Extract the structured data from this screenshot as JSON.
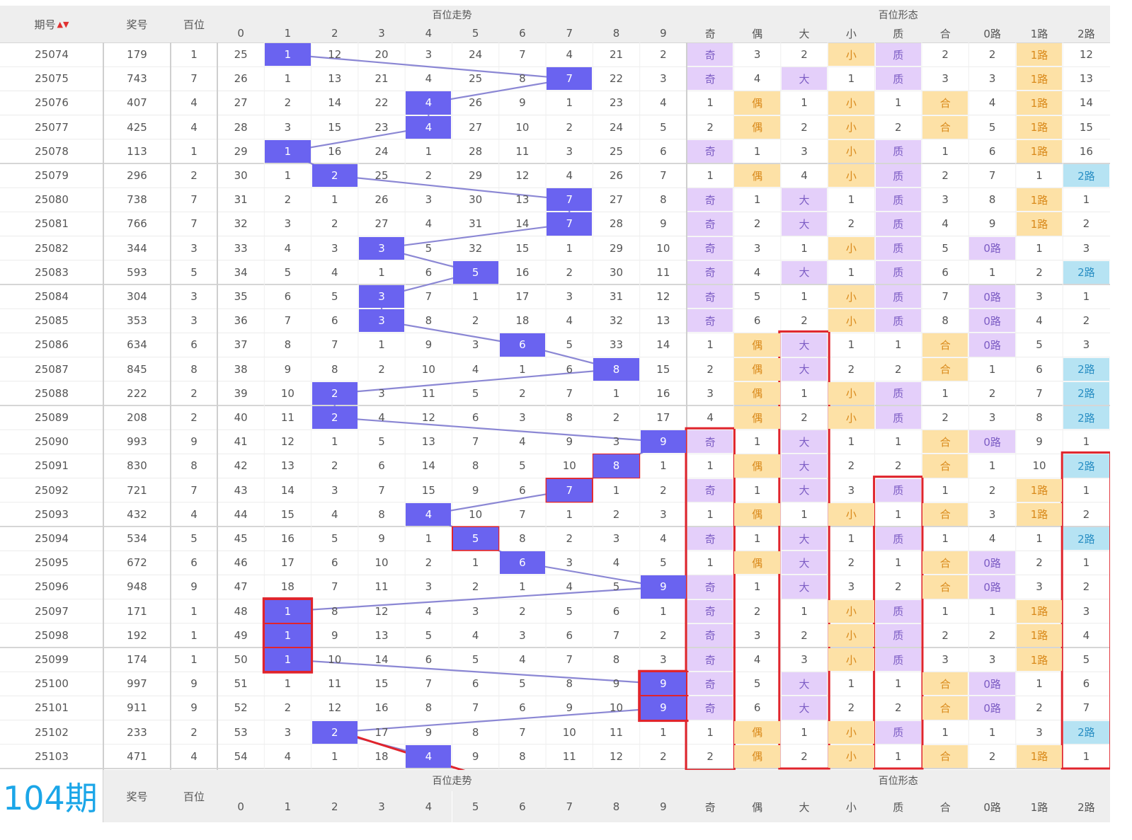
{
  "header": {
    "issue_label": "期号",
    "award_label": "奖号",
    "hundreds_label": "百位",
    "trend_title": "百位走势",
    "form_title": "百位形态",
    "sort_mark": "▲▼",
    "next_issue": "104期"
  },
  "digit_headers": [
    "0",
    "1",
    "2",
    "3",
    "4",
    "5",
    "6",
    "7",
    "8",
    "9"
  ],
  "form_headers": [
    "奇",
    "偶",
    "大",
    "小",
    "质",
    "合",
    "0路",
    "1路",
    "2路"
  ],
  "colors": {
    "ball": "#6a63f0",
    "line": "#8b87d4",
    "purple": "#e4cffa",
    "orange": "#fde1a6",
    "cyan": "#b6e3f3",
    "highlight": "#e0242c",
    "big_text": "#1ba6e8",
    "header_bg": "#eeeeee"
  },
  "rows": [
    {
      "issue": "25074",
      "award": "179",
      "h": "1",
      "trend": [
        "25",
        "1",
        "12",
        "20",
        "3",
        "24",
        "7",
        "4",
        "21",
        "2"
      ],
      "form": [
        "奇",
        "3",
        "2",
        "小",
        "质",
        "2",
        "2",
        "1路",
        "12"
      ]
    },
    {
      "issue": "25075",
      "award": "743",
      "h": "7",
      "trend": [
        "26",
        "1",
        "13",
        "21",
        "4",
        "25",
        "8",
        "7",
        "22",
        "3"
      ],
      "form": [
        "奇",
        "4",
        "大",
        "1",
        "质",
        "3",
        "3",
        "1路",
        "13"
      ]
    },
    {
      "issue": "25076",
      "award": "407",
      "h": "4",
      "trend": [
        "27",
        "2",
        "14",
        "22",
        "4",
        "26",
        "9",
        "1",
        "23",
        "4"
      ],
      "form": [
        "1",
        "偶",
        "1",
        "小",
        "1",
        "合",
        "4",
        "1路",
        "14"
      ]
    },
    {
      "issue": "25077",
      "award": "425",
      "h": "4",
      "trend": [
        "28",
        "3",
        "15",
        "23",
        "4",
        "27",
        "10",
        "2",
        "24",
        "5"
      ],
      "form": [
        "2",
        "偶",
        "2",
        "小",
        "2",
        "合",
        "5",
        "1路",
        "15"
      ]
    },
    {
      "issue": "25078",
      "award": "113",
      "h": "1",
      "trend": [
        "29",
        "1",
        "16",
        "24",
        "1",
        "28",
        "11",
        "3",
        "25",
        "6"
      ],
      "form": [
        "奇",
        "1",
        "3",
        "小",
        "质",
        "1",
        "6",
        "1路",
        "16"
      ]
    },
    {
      "issue": "25079",
      "award": "296",
      "h": "2",
      "trend": [
        "30",
        "1",
        "2",
        "25",
        "2",
        "29",
        "12",
        "4",
        "26",
        "7"
      ],
      "form": [
        "1",
        "偶",
        "4",
        "小",
        "质",
        "2",
        "7",
        "1",
        "2路"
      ]
    },
    {
      "issue": "25080",
      "award": "738",
      "h": "7",
      "trend": [
        "31",
        "2",
        "1",
        "26",
        "3",
        "30",
        "13",
        "7",
        "27",
        "8"
      ],
      "form": [
        "奇",
        "1",
        "大",
        "1",
        "质",
        "3",
        "8",
        "1路",
        "1"
      ]
    },
    {
      "issue": "25081",
      "award": "766",
      "h": "7",
      "trend": [
        "32",
        "3",
        "2",
        "27",
        "4",
        "31",
        "14",
        "7",
        "28",
        "9"
      ],
      "form": [
        "奇",
        "2",
        "大",
        "2",
        "质",
        "4",
        "9",
        "1路",
        "2"
      ]
    },
    {
      "issue": "25082",
      "award": "344",
      "h": "3",
      "trend": [
        "33",
        "4",
        "3",
        "3",
        "5",
        "32",
        "15",
        "1",
        "29",
        "10"
      ],
      "form": [
        "奇",
        "3",
        "1",
        "小",
        "质",
        "5",
        "0路",
        "1",
        "3"
      ]
    },
    {
      "issue": "25083",
      "award": "593",
      "h": "5",
      "trend": [
        "34",
        "5",
        "4",
        "1",
        "6",
        "5",
        "16",
        "2",
        "30",
        "11"
      ],
      "form": [
        "奇",
        "4",
        "大",
        "1",
        "质",
        "6",
        "1",
        "2",
        "2路"
      ]
    },
    {
      "issue": "25084",
      "award": "304",
      "h": "3",
      "trend": [
        "35",
        "6",
        "5",
        "3",
        "7",
        "1",
        "17",
        "3",
        "31",
        "12"
      ],
      "form": [
        "奇",
        "5",
        "1",
        "小",
        "质",
        "7",
        "0路",
        "3",
        "1"
      ]
    },
    {
      "issue": "25085",
      "award": "353",
      "h": "3",
      "trend": [
        "36",
        "7",
        "6",
        "3",
        "8",
        "2",
        "18",
        "4",
        "32",
        "13"
      ],
      "form": [
        "奇",
        "6",
        "2",
        "小",
        "质",
        "8",
        "0路",
        "4",
        "2"
      ]
    },
    {
      "issue": "25086",
      "award": "634",
      "h": "6",
      "trend": [
        "37",
        "8",
        "7",
        "1",
        "9",
        "3",
        "6",
        "5",
        "33",
        "14"
      ],
      "form": [
        "1",
        "偶",
        "大",
        "1",
        "1",
        "合",
        "0路",
        "5",
        "3"
      ]
    },
    {
      "issue": "25087",
      "award": "845",
      "h": "8",
      "trend": [
        "38",
        "9",
        "8",
        "2",
        "10",
        "4",
        "1",
        "6",
        "8",
        "15"
      ],
      "form": [
        "2",
        "偶",
        "大",
        "2",
        "2",
        "合",
        "1",
        "6",
        "2路"
      ]
    },
    {
      "issue": "25088",
      "award": "222",
      "h": "2",
      "trend": [
        "39",
        "10",
        "2",
        "3",
        "11",
        "5",
        "2",
        "7",
        "1",
        "16"
      ],
      "form": [
        "3",
        "偶",
        "1",
        "小",
        "质",
        "1",
        "2",
        "7",
        "2路"
      ]
    },
    {
      "issue": "25089",
      "award": "208",
      "h": "2",
      "trend": [
        "40",
        "11",
        "2",
        "4",
        "12",
        "6",
        "3",
        "8",
        "2",
        "17"
      ],
      "form": [
        "4",
        "偶",
        "2",
        "小",
        "质",
        "2",
        "3",
        "8",
        "2路"
      ]
    },
    {
      "issue": "25090",
      "award": "993",
      "h": "9",
      "trend": [
        "41",
        "12",
        "1",
        "5",
        "13",
        "7",
        "4",
        "9",
        "3",
        "9"
      ],
      "form": [
        "奇",
        "1",
        "大",
        "1",
        "1",
        "合",
        "0路",
        "9",
        "1"
      ]
    },
    {
      "issue": "25091",
      "award": "830",
      "h": "8",
      "trend": [
        "42",
        "13",
        "2",
        "6",
        "14",
        "8",
        "5",
        "10",
        "8",
        "1"
      ],
      "form": [
        "1",
        "偶",
        "大",
        "2",
        "2",
        "合",
        "1",
        "10",
        "2路"
      ]
    },
    {
      "issue": "25092",
      "award": "721",
      "h": "7",
      "trend": [
        "43",
        "14",
        "3",
        "7",
        "15",
        "9",
        "6",
        "7",
        "1",
        "2"
      ],
      "form": [
        "奇",
        "1",
        "大",
        "3",
        "质",
        "1",
        "2",
        "1路",
        "1"
      ]
    },
    {
      "issue": "25093",
      "award": "432",
      "h": "4",
      "trend": [
        "44",
        "15",
        "4",
        "8",
        "4",
        "10",
        "7",
        "1",
        "2",
        "3"
      ],
      "form": [
        "1",
        "偶",
        "1",
        "小",
        "1",
        "合",
        "3",
        "1路",
        "2"
      ]
    },
    {
      "issue": "25094",
      "award": "534",
      "h": "5",
      "trend": [
        "45",
        "16",
        "5",
        "9",
        "1",
        "5",
        "8",
        "2",
        "3",
        "4"
      ],
      "form": [
        "奇",
        "1",
        "大",
        "1",
        "质",
        "1",
        "4",
        "1",
        "2路"
      ]
    },
    {
      "issue": "25095",
      "award": "672",
      "h": "6",
      "trend": [
        "46",
        "17",
        "6",
        "10",
        "2",
        "1",
        "6",
        "3",
        "4",
        "5"
      ],
      "form": [
        "1",
        "偶",
        "大",
        "2",
        "1",
        "合",
        "0路",
        "2",
        "1"
      ]
    },
    {
      "issue": "25096",
      "award": "948",
      "h": "9",
      "trend": [
        "47",
        "18",
        "7",
        "11",
        "3",
        "2",
        "1",
        "4",
        "5",
        "9"
      ],
      "form": [
        "奇",
        "1",
        "大",
        "3",
        "2",
        "合",
        "0路",
        "3",
        "2"
      ]
    },
    {
      "issue": "25097",
      "award": "171",
      "h": "1",
      "trend": [
        "48",
        "1",
        "8",
        "12",
        "4",
        "3",
        "2",
        "5",
        "6",
        "1"
      ],
      "form": [
        "奇",
        "2",
        "1",
        "小",
        "质",
        "1",
        "1",
        "1路",
        "3"
      ]
    },
    {
      "issue": "25098",
      "award": "192",
      "h": "1",
      "trend": [
        "49",
        "1",
        "9",
        "13",
        "5",
        "4",
        "3",
        "6",
        "7",
        "2"
      ],
      "form": [
        "奇",
        "3",
        "2",
        "小",
        "质",
        "2",
        "2",
        "1路",
        "4"
      ]
    },
    {
      "issue": "25099",
      "award": "174",
      "h": "1",
      "trend": [
        "50",
        "1",
        "10",
        "14",
        "6",
        "5",
        "4",
        "7",
        "8",
        "3"
      ],
      "form": [
        "奇",
        "4",
        "3",
        "小",
        "质",
        "3",
        "3",
        "1路",
        "5"
      ]
    },
    {
      "issue": "25100",
      "award": "997",
      "h": "9",
      "trend": [
        "51",
        "1",
        "11",
        "15",
        "7",
        "6",
        "5",
        "8",
        "9",
        "9"
      ],
      "form": [
        "奇",
        "5",
        "大",
        "1",
        "1",
        "合",
        "0路",
        "1",
        "6"
      ]
    },
    {
      "issue": "25101",
      "award": "911",
      "h": "9",
      "trend": [
        "52",
        "2",
        "12",
        "16",
        "8",
        "7",
        "6",
        "9",
        "10",
        "9"
      ],
      "form": [
        "奇",
        "6",
        "大",
        "2",
        "2",
        "合",
        "0路",
        "2",
        "7"
      ]
    },
    {
      "issue": "25102",
      "award": "233",
      "h": "2",
      "trend": [
        "53",
        "3",
        "2",
        "17",
        "9",
        "8",
        "7",
        "10",
        "11",
        "1"
      ],
      "form": [
        "1",
        "偶",
        "1",
        "小",
        "质",
        "1",
        "1",
        "3",
        "2路"
      ]
    },
    {
      "issue": "25103",
      "award": "471",
      "h": "4",
      "trend": [
        "54",
        "4",
        "1",
        "18",
        "4",
        "9",
        "8",
        "11",
        "12",
        "2"
      ],
      "form": [
        "2",
        "偶",
        "2",
        "小",
        "1",
        "合",
        "2",
        "1路",
        "1"
      ]
    }
  ]
}
